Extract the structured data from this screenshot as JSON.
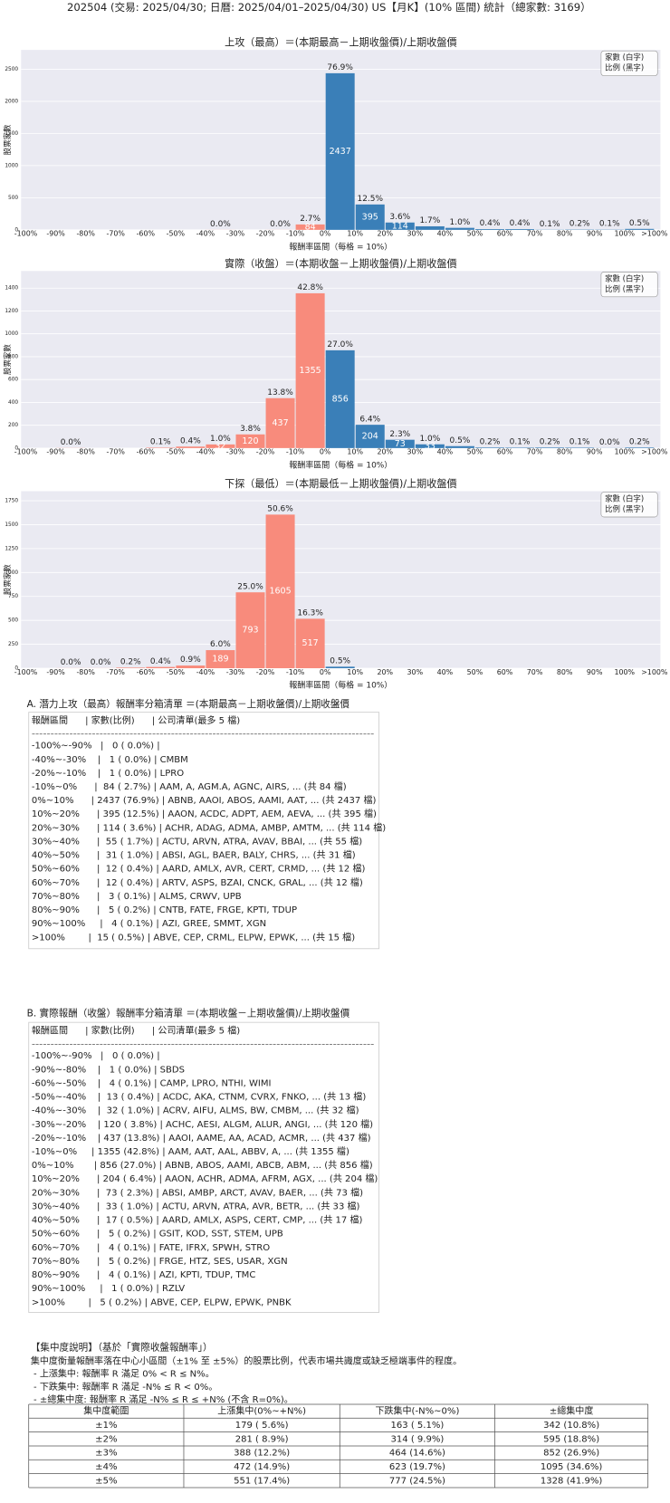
{
  "title": "202504 (交易: 2025/04/30; 日曆: 2025/04/01–2025/04/30) US【月K】(10% 區間) 統計（總家數: 3169）",
  "chart_data": [
    {
      "type": "histogram",
      "title": "上攻（最高）＝(本期最高－上期收盤價)/上期收盤價",
      "x_label": "報酬率區間（每格 = 10%）",
      "y_label": "股票家數",
      "bins": [
        -100,
        -90,
        -80,
        -70,
        -60,
        -50,
        -40,
        -30,
        -20,
        -10,
        0,
        10,
        20,
        30,
        40,
        50,
        60,
        70,
        80,
        90,
        100,
        110
      ],
      "xticks": [
        {
          "value": -100,
          "label": "-100%"
        },
        {
          "value": -90,
          "label": "-90%"
        },
        {
          "value": -80,
          "label": "-80%"
        },
        {
          "value": -70,
          "label": "-70%"
        },
        {
          "value": -60,
          "label": "-60%"
        },
        {
          "value": -50,
          "label": "-50%"
        },
        {
          "value": -40,
          "label": "-40%"
        },
        {
          "value": -30,
          "label": "-30%"
        },
        {
          "value": -20,
          "label": "-20%"
        },
        {
          "value": -10,
          "label": "-10%"
        },
        {
          "value": 0,
          "label": "0%"
        },
        {
          "value": 10,
          "label": "10%"
        },
        {
          "value": 20,
          "label": "20%"
        },
        {
          "value": 30,
          "label": "30%"
        },
        {
          "value": 40,
          "label": "40%"
        },
        {
          "value": 50,
          "label": "50%"
        },
        {
          "value": 60,
          "label": "60%"
        },
        {
          "value": 70,
          "label": "70%"
        },
        {
          "value": 80,
          "label": "80%"
        },
        {
          "value": 90,
          "label": "90%"
        },
        {
          "value": 100,
          "label": "100%"
        },
        {
          "value": 110,
          "label": ">100%"
        }
      ],
      "xlim": [
        -101.6,
        112
      ],
      "values": [
        0,
        0,
        0,
        0,
        0,
        0,
        1,
        0,
        1,
        84,
        2437,
        395,
        114,
        55,
        31,
        12,
        12,
        3,
        5,
        4,
        15
      ],
      "value_labels": [
        null,
        null,
        null,
        null,
        null,
        null,
        null,
        null,
        null,
        "84",
        "2437",
        "395",
        "114",
        null,
        null,
        null,
        null,
        null,
        null,
        null,
        null
      ],
      "percent_labels": [
        null,
        null,
        null,
        null,
        null,
        null,
        "0.0%",
        null,
        "0.0%",
        "2.7%",
        "76.9%",
        "12.5%",
        "3.6%",
        "1.7%",
        "1.0%",
        "0.4%",
        "0.4%",
        "0.1%",
        "0.2%",
        "0.1%",
        "0.5%"
      ],
      "ylim": [
        0,
        2800
      ],
      "yticks": [
        0,
        500,
        1000,
        1500,
        2000,
        2500
      ],
      "colors": {
        "negative": "#f88b7c",
        "positive": "#3a7fb8"
      },
      "background": "#eaeaf2",
      "grid": true,
      "legend": [
        "家數 (白字)",
        "比例 (黑字)"
      ],
      "legend_corner": "upper right"
    },
    {
      "type": "histogram",
      "title": "實際（收盤）＝(本期收盤－上期收盤價)/上期收盤價",
      "x_label": "報酬率區間（每格 = 10%）",
      "y_label": "股票家數",
      "bins": [
        -100,
        -90,
        -80,
        -70,
        -60,
        -50,
        -40,
        -30,
        -20,
        -10,
        0,
        10,
        20,
        30,
        40,
        50,
        60,
        70,
        80,
        90,
        100,
        110
      ],
      "xticks": [
        {
          "value": -100,
          "label": "-100%"
        },
        {
          "value": -90,
          "label": "-90%"
        },
        {
          "value": -80,
          "label": "-80%"
        },
        {
          "value": -70,
          "label": "-70%"
        },
        {
          "value": -60,
          "label": "-60%"
        },
        {
          "value": -50,
          "label": "-50%"
        },
        {
          "value": -40,
          "label": "-40%"
        },
        {
          "value": -30,
          "label": "-30%"
        },
        {
          "value": -20,
          "label": "-20%"
        },
        {
          "value": -10,
          "label": "-10%"
        },
        {
          "value": 0,
          "label": "0%"
        },
        {
          "value": 10,
          "label": "10%"
        },
        {
          "value": 20,
          "label": "20%"
        },
        {
          "value": 30,
          "label": "30%"
        },
        {
          "value": 40,
          "label": "40%"
        },
        {
          "value": 50,
          "label": "50%"
        },
        {
          "value": 60,
          "label": "60%"
        },
        {
          "value": 70,
          "label": "70%"
        },
        {
          "value": 80,
          "label": "80%"
        },
        {
          "value": 90,
          "label": "90%"
        },
        {
          "value": 100,
          "label": "100%"
        },
        {
          "value": 110,
          "label": ">100%"
        }
      ],
      "xlim": [
        -101.6,
        112
      ],
      "values": [
        0,
        1,
        0,
        0,
        4,
        13,
        32,
        120,
        437,
        1355,
        856,
        204,
        73,
        33,
        17,
        5,
        4,
        5,
        4,
        1,
        5
      ],
      "value_labels": [
        null,
        null,
        null,
        null,
        null,
        null,
        "32",
        "120",
        "437",
        "1355",
        "856",
        "204",
        "73",
        "33",
        null,
        null,
        null,
        null,
        null,
        null,
        null
      ],
      "percent_labels": [
        null,
        "0.0%",
        null,
        null,
        "0.1%",
        "0.4%",
        "1.0%",
        "3.8%",
        "13.8%",
        "42.8%",
        "27.0%",
        "6.4%",
        "2.3%",
        "1.0%",
        "0.5%",
        "0.2%",
        "0.1%",
        "0.2%",
        "0.1%",
        "0.0%",
        "0.2%"
      ],
      "ylim": [
        0,
        1550
      ],
      "yticks": [
        0,
        200,
        400,
        600,
        800,
        1000,
        1200,
        1400
      ],
      "colors": {
        "negative": "#f88b7c",
        "positive": "#3a7fb8"
      },
      "background": "#eaeaf2",
      "grid": true,
      "legend": [
        "家數 (白字)",
        "比例 (黑字)"
      ],
      "legend_corner": "upper right"
    },
    {
      "type": "histogram",
      "title": "下探（最低）＝(本期最低－上期收盤價)/上期收盤價",
      "x_label": "報酬率區間（每格 = 10%）",
      "y_label": "股票家數",
      "bins": [
        -100,
        -90,
        -80,
        -70,
        -60,
        -50,
        -40,
        -30,
        -20,
        -10,
        0,
        10,
        20,
        30,
        40,
        50,
        60,
        70,
        80,
        90,
        100,
        110
      ],
      "xticks": [
        {
          "value": -100,
          "label": "-100%"
        },
        {
          "value": -90,
          "label": "-90%"
        },
        {
          "value": -80,
          "label": "-80%"
        },
        {
          "value": -70,
          "label": "-70%"
        },
        {
          "value": -60,
          "label": "-60%"
        },
        {
          "value": -50,
          "label": "-50%"
        },
        {
          "value": -40,
          "label": "-40%"
        },
        {
          "value": -30,
          "label": "-30%"
        },
        {
          "value": -20,
          "label": "-20%"
        },
        {
          "value": -10,
          "label": "-10%"
        },
        {
          "value": 0,
          "label": "0%"
        },
        {
          "value": 10,
          "label": "10%"
        },
        {
          "value": 20,
          "label": "20%"
        },
        {
          "value": 30,
          "label": "30%"
        },
        {
          "value": 40,
          "label": "40%"
        },
        {
          "value": 50,
          "label": "50%"
        },
        {
          "value": 60,
          "label": "60%"
        },
        {
          "value": 70,
          "label": "70%"
        },
        {
          "value": 80,
          "label": "80%"
        },
        {
          "value": 90,
          "label": "90%"
        },
        {
          "value": 100,
          "label": "100%"
        },
        {
          "value": 110,
          "label": ">100%"
        }
      ],
      "xlim": [
        -101.6,
        112
      ],
      "values": [
        0,
        1,
        1,
        6,
        13,
        28,
        189,
        793,
        1605,
        517,
        16,
        0,
        0,
        0,
        0,
        0,
        0,
        0,
        0,
        0,
        0
      ],
      "value_labels": [
        null,
        null,
        null,
        null,
        null,
        null,
        "189",
        "793",
        "1605",
        "517",
        null,
        null,
        null,
        null,
        null,
        null,
        null,
        null,
        null,
        null,
        null
      ],
      "percent_labels": [
        null,
        "0.0%",
        "0.0%",
        "0.2%",
        "0.4%",
        "0.9%",
        "6.0%",
        "25.0%",
        "50.6%",
        "16.3%",
        "0.5%",
        null,
        null,
        null,
        null,
        null,
        null,
        null,
        null,
        null,
        null
      ],
      "ylim": [
        0,
        1850
      ],
      "yticks": [
        0,
        250,
        500,
        750,
        1000,
        1250,
        1500,
        1750
      ],
      "colors": {
        "negative": "#f88b7c",
        "positive": "#3a7fb8"
      },
      "background": "#eaeaf2",
      "grid": true,
      "legend": [
        "家數 (白字)",
        "比例 (黑字)"
      ],
      "legend_corner": "upper right"
    }
  ],
  "list_a": {
    "title": "A. 潛力上攻（最高）報酬率分箱清單 ＝(本期最高－上期收盤價)/上期收盤價",
    "header": "報酬區間      | 家數(比例)      | 公司清單(最多 5 檔)",
    "rule": "-------------------------------------------------------------------------------------------",
    "rows": [
      "-100%~-90%   |   0 ( 0.0%) |",
      "-40%~-30%    |   1 ( 0.0%) | CMBM",
      "-20%~-10%    |   1 ( 0.0%) | LPRO",
      "-10%~0%      |  84 ( 2.7%) | AAM, A, AGM.A, AGNC, AIRS, ... (共 84 檔)",
      "0%~10%      | 2437 (76.9%) | ABNB, AAOI, ABOS, AAMI, AAT, ... (共 2437 檔)",
      "10%~20%      | 395 (12.5%) | AAON, ACDC, ADPT, AEM, AEVA, ... (共 395 檔)",
      "20%~30%      | 114 ( 3.6%) | ACHR, ADAG, ADMA, AMBP, AMTM, ... (共 114 檔)",
      "30%~40%      |  55 ( 1.7%) | ACTU, ARVN, ATRA, AVAV, BBAI, ... (共 55 檔)",
      "40%~50%      |  31 ( 1.0%) | ABSI, AGL, BAER, BALY, CHRS, ... (共 31 檔)",
      "50%~60%      |  12 ( 0.4%) | AARD, AMLX, AVR, CERT, CRMD, ... (共 12 檔)",
      "60%~70%      |  12 ( 0.4%) | ARTV, ASPS, BZAI, CNCK, GRAL, ... (共 12 檔)",
      "70%~80%      |   3 ( 0.1%) | ALMS, CRWV, UPB",
      "80%~90%      |   5 ( 0.2%) | CNTB, FATE, FRGE, KPTI, TDUP",
      "90%~100%     |   4 ( 0.1%) | AZI, GREE, SMMT, XGN",
      ">100%        |  15 ( 0.5%) | ABVE, CEP, CRML, ELPW, EPWK, ... (共 15 檔)"
    ]
  },
  "list_b": {
    "title": "B. 實際報酬（收盤）報酬率分箱清單 ＝(本期收盤－上期收盤價)/上期收盤價",
    "header": "報酬區間      | 家數(比例)      | 公司清單(最多 5 檔)",
    "rule": "-------------------------------------------------------------------------------------------",
    "rows": [
      "-100%~-90%   |   0 ( 0.0%) |",
      "-90%~-80%    |   1 ( 0.0%) | SBDS",
      "-60%~-50%    |   4 ( 0.1%) | CAMP, LPRO, NTHI, WIMI",
      "-50%~-40%    |  13 ( 0.4%) | ACDC, AKA, CTNM, CVRX, FNKO, ... (共 13 檔)",
      "-40%~-30%    |  32 ( 1.0%) | ACRV, AIFU, ALMS, BW, CMBM, ... (共 32 檔)",
      "-30%~-20%    | 120 ( 3.8%) | ACHC, AESI, ALGM, ALUR, ANGI, ... (共 120 檔)",
      "-20%~-10%    | 437 (13.8%) | AAOI, AAME, AA, ACAD, ACMR, ... (共 437 檔)",
      "-10%~0%     | 1355 (42.8%) | AAM, AAT, AAL, ABBV, A, ... (共 1355 檔)",
      "0%~10%       | 856 (27.0%) | ABNB, ABOS, AAMI, ABCB, ABM, ... (共 856 檔)",
      "10%~20%      | 204 ( 6.4%) | AAON, ACHR, ADMA, AFRM, AGX, ... (共 204 檔)",
      "20%~30%      |  73 ( 2.3%) | ABSI, AMBP, ARCT, AVAV, BAER, ... (共 73 檔)",
      "30%~40%      |  33 ( 1.0%) | ACTU, ARVN, ATRA, AVR, BETR, ... (共 33 檔)",
      "40%~50%      |  17 ( 0.5%) | AARD, AMLX, ASPS, CERT, CMP, ... (共 17 檔)",
      "50%~60%      |   5 ( 0.2%) | GSIT, KOD, SST, STEM, UPB",
      "60%~70%      |   4 ( 0.1%) | FATE, IFRX, SPWH, STRO",
      "70%~80%      |   5 ( 0.2%) | FRGE, HTZ, SES, USAR, XGN",
      "80%~90%      |   4 ( 0.1%) | AZI, KPTI, TDUP, TMC",
      "90%~100%     |   1 ( 0.0%) | RZLV",
      ">100%        |   5 ( 0.2%) | ABVE, CEP, ELPW, EPWK, PNBK"
    ]
  },
  "concentration": {
    "title": "【集中度說明】（基於「實際收盤報酬率」）",
    "notes": [
      "集中度衡量報酬率落在中心小區間（±1% 至 ±5%）的股票比例，代表市場共識度或缺乏極端事件的程度。",
      " - 上漲集中: 報酬率 R 滿足 0% < R ≤ N%。",
      " - 下跌集中: 報酬率 R 滿足 -N% ≤ R < 0%。",
      " - ±總集中度: 報酬率 R 滿足 -N% ≤ R ≤ +N% (不含 R=0%)。"
    ],
    "table": {
      "header": [
        "集中度範圍",
        "上漲集中(0%~+N%)",
        "下跌集中(-N%~0%)",
        "±總集中度"
      ],
      "rows": [
        [
          "±1%",
          "179 ( 5.6%)",
          "163 ( 5.1%)",
          "342 (10.8%)"
        ],
        [
          "±2%",
          "281 ( 8.9%)",
          "314 ( 9.9%)",
          "595 (18.8%)"
        ],
        [
          "±3%",
          "388 (12.2%)",
          "464 (14.6%)",
          "852 (26.9%)"
        ],
        [
          "±4%",
          "472 (14.9%)",
          "623 (19.7%)",
          "1095 (34.6%)"
        ],
        [
          "±5%",
          "551 (17.4%)",
          "777 (24.5%)",
          "1328 (41.9%)"
        ]
      ]
    }
  }
}
